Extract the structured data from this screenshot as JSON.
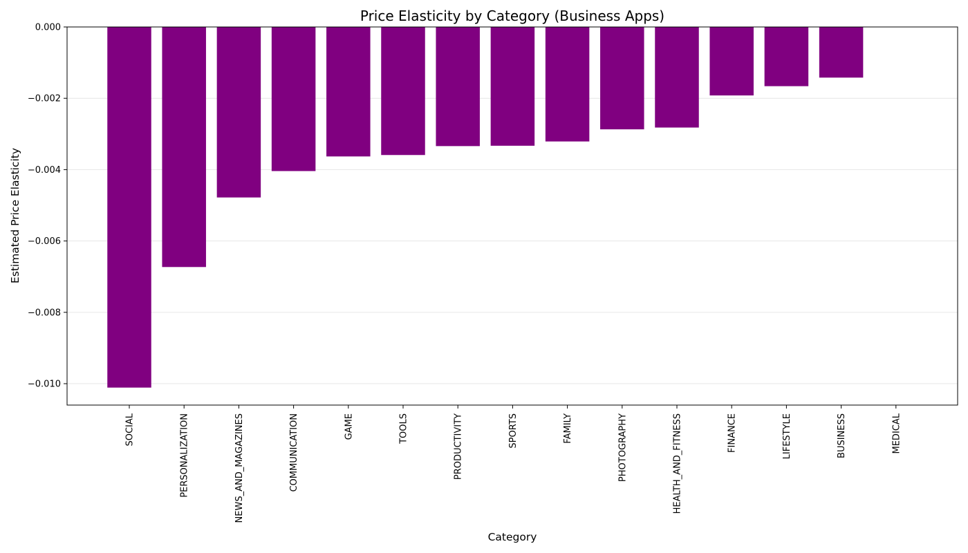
{
  "chart_data": {
    "type": "bar",
    "title": "Price Elasticity by Category (Business Apps)",
    "xlabel": "Category",
    "ylabel": "Estimated Price Elasticity",
    "categories": [
      "SOCIAL",
      "PERSONALIZATION",
      "NEWS_AND_MAGAZINES",
      "COMMUNICATION",
      "GAME",
      "TOOLS",
      "PRODUCTIVITY",
      "SPORTS",
      "FAMILY",
      "PHOTOGRAPHY",
      "HEALTH_AND_FITNESS",
      "FINANCE",
      "LIFESTYLE",
      "BUSINESS",
      "MEDICAL"
    ],
    "values": [
      -0.01011,
      -0.00673,
      -0.00478,
      -0.00404,
      -0.00363,
      -0.00359,
      -0.00334,
      -0.00333,
      -0.00321,
      -0.00287,
      -0.00282,
      -0.00192,
      -0.00166,
      -0.00142,
      0.0
    ],
    "ylim": [
      -0.0106,
      0.0
    ],
    "yticks": [
      0.0,
      -0.002,
      -0.004,
      -0.006,
      -0.008,
      -0.01
    ],
    "ytick_labels": [
      "0.000",
      "−0.002",
      "−0.004",
      "−0.006",
      "−0.008",
      "−0.010"
    ],
    "bar_color": "#800080",
    "grid": "y-major"
  }
}
